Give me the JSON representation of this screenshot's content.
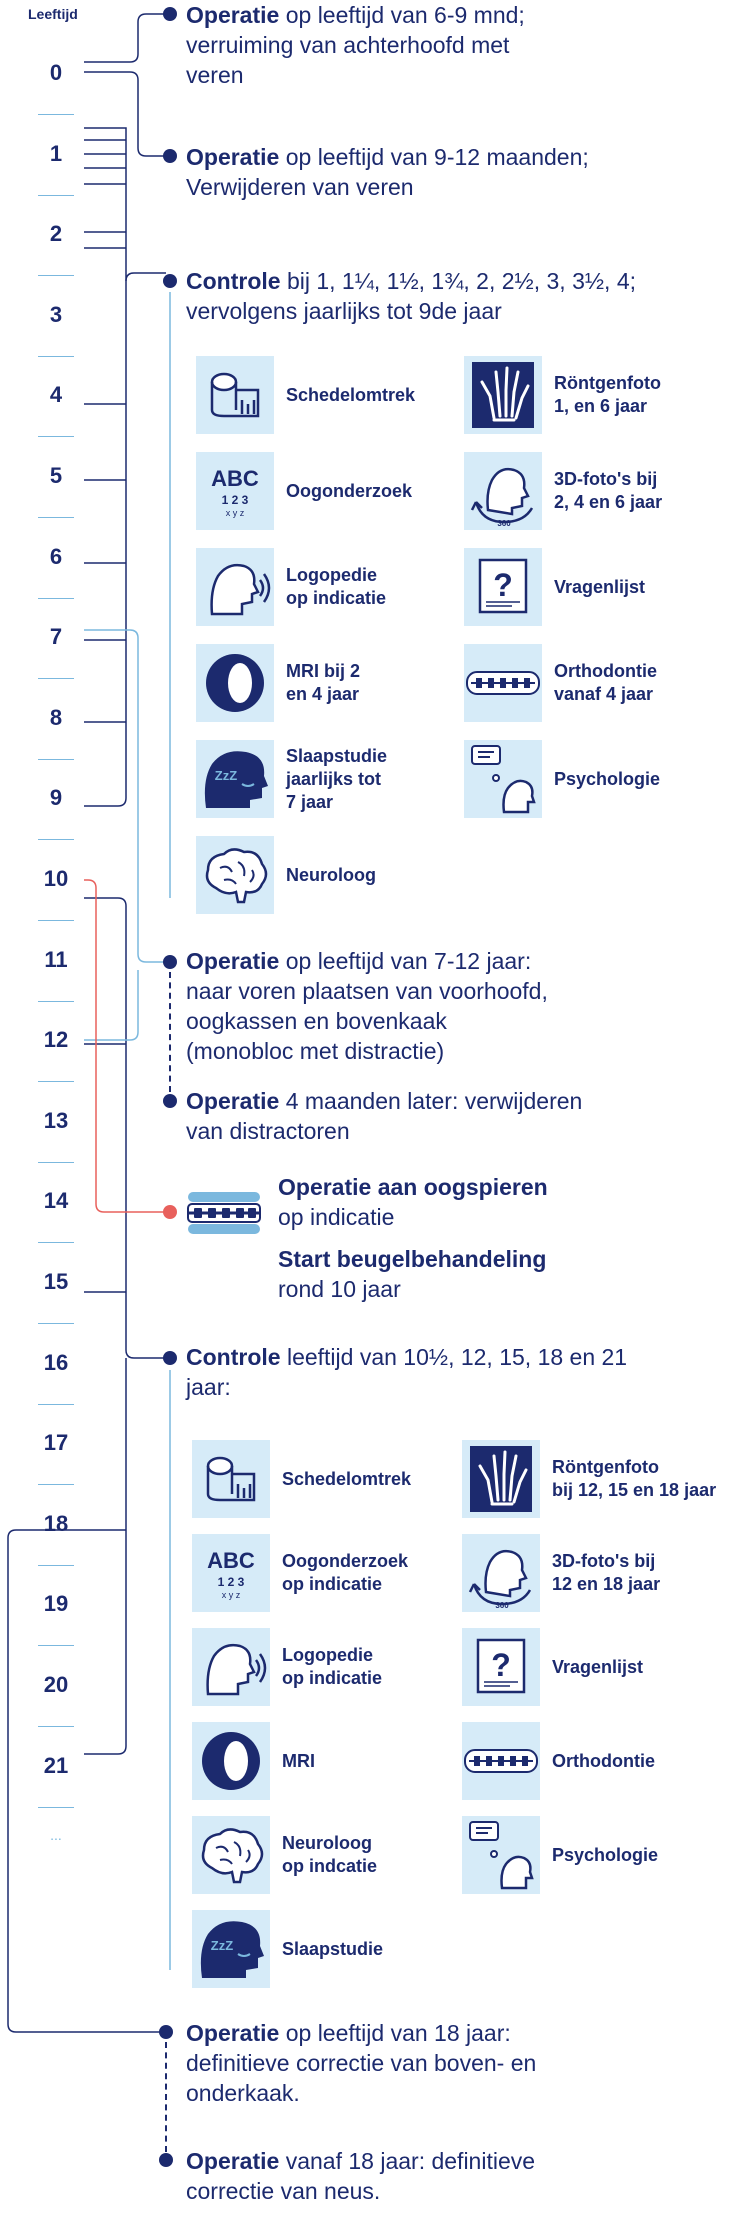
{
  "age_header": "Leeftijd",
  "ages": [
    "0",
    "1",
    "2",
    "3",
    "4",
    "5",
    "6",
    "7",
    "8",
    "9",
    "10",
    "11",
    "12",
    "13",
    "14",
    "15",
    "16",
    "17",
    "18",
    "19",
    "20",
    "21",
    "..."
  ],
  "steps": {
    "op1": {
      "title": "Operatie",
      "text": "op leeftijd van 6-9 mnd;",
      "line2": "verruiming van achterhoofd met",
      "line3": "veren"
    },
    "op2": {
      "title": "Operatie",
      "text": "op leeftijd van 9-12 maanden;",
      "line2": "Verwijderen van veren"
    },
    "ctrl1": {
      "title": "Controle",
      "text": "bij 1,  1¼, 1½, 1¾, 2, 2½, 3, 3½, 4;",
      "line2": "vervolgens jaarlijks tot 9de jaar"
    },
    "op3": {
      "title": "Operatie",
      "text": "op leeftijd van 7-12 jaar:",
      "line2": "naar voren plaatsen van voorhoofd,",
      "line3": "oogkassen en bovenkaak",
      "line4": "(monobloc met distractie)"
    },
    "op4": {
      "title": "Operatie",
      "text": "4 maanden later: verwijderen",
      "line2": "van distractoren"
    },
    "eye": {
      "title": "Operatie aan oogspieren",
      "line2": "op indicatie"
    },
    "brace": {
      "title": "Start beugelbehandeling",
      "line2": "rond 10 jaar"
    },
    "ctrl2": {
      "title": "Controle",
      "text": "leeftijd van 10½, 12, 15, 18 en 21",
      "line2": "jaar:"
    },
    "op5": {
      "title": "Operatie",
      "text": "op leeftijd van 18 jaar:",
      "line2": "definitieve correctie van boven- en",
      "line3": "onderkaak."
    },
    "op6": {
      "title": "Operatie",
      "text": "vanaf 18 jaar: definitieve",
      "line2": "correctie van neus."
    }
  },
  "group1": [
    {
      "icon": "tape-measure-icon",
      "label": "Schedelomtrek",
      "side": "left"
    },
    {
      "icon": "xray-hand-icon",
      "label": "Röntgenfoto\n1,  en 6 jaar",
      "side": "right"
    },
    {
      "icon": "eye-chart-icon",
      "label": "Oogonderzoek",
      "side": "left"
    },
    {
      "icon": "3d-photo-icon",
      "label": "3D-foto's bij\n2, 4 en 6 jaar",
      "side": "right"
    },
    {
      "icon": "speech-icon",
      "label": "Logopedie\nop indicatie",
      "side": "left"
    },
    {
      "icon": "questionnaire-icon",
      "label": "Vragenlijst",
      "side": "right"
    },
    {
      "icon": "mri-icon",
      "label": "MRI bij 2\nen 4 jaar",
      "side": "left"
    },
    {
      "icon": "braces-icon",
      "label": "Orthodontie\nvanaf 4 jaar",
      "side": "right"
    },
    {
      "icon": "sleep-icon",
      "label": "Slaapstudie\njaarlijks tot\n7 jaar",
      "side": "left"
    },
    {
      "icon": "psychology-icon",
      "label": "Psychologie",
      "side": "right"
    },
    {
      "icon": "brain-icon",
      "label": "Neuroloog",
      "side": "left"
    }
  ],
  "group2": [
    {
      "icon": "tape-measure-icon",
      "label": "Schedelomtrek",
      "side": "left"
    },
    {
      "icon": "xray-hand-icon",
      "label": "Röntgenfoto\nbij 12, 15 en 18 jaar",
      "side": "right"
    },
    {
      "icon": "eye-chart-icon",
      "label": "Oogonderzoek\nop indicatie",
      "side": "left"
    },
    {
      "icon": "3d-photo-icon",
      "label": "3D-foto's bij\n12 en 18 jaar",
      "side": "right"
    },
    {
      "icon": "speech-icon",
      "label": "Logopedie\nop indicatie",
      "side": "left"
    },
    {
      "icon": "questionnaire-icon",
      "label": "Vragenlijst",
      "side": "right"
    },
    {
      "icon": "mri-icon",
      "label": "MRI",
      "side": "left"
    },
    {
      "icon": "braces-icon",
      "label": "Orthodontie",
      "side": "right"
    },
    {
      "icon": "brain-icon",
      "label": "Neuroloog\nop indcatie",
      "side": "left"
    },
    {
      "icon": "psychology-icon",
      "label": "Psychologie",
      "side": "right"
    },
    {
      "icon": "sleep-icon",
      "label": "Slaapstudie",
      "side": "left"
    }
  ],
  "eye_chart": {
    "letters": "ABC",
    "digits": "1 2 3",
    "small": "x y z"
  },
  "tile_chars": {
    "zzz": "ZzZ",
    "question": "?",
    "deg": "360"
  },
  "colors": {
    "navy": "#1c2a6e",
    "light_blue": "#7bb8de",
    "tile_bg": "#d6ebf8",
    "red": "#e8605c"
  }
}
